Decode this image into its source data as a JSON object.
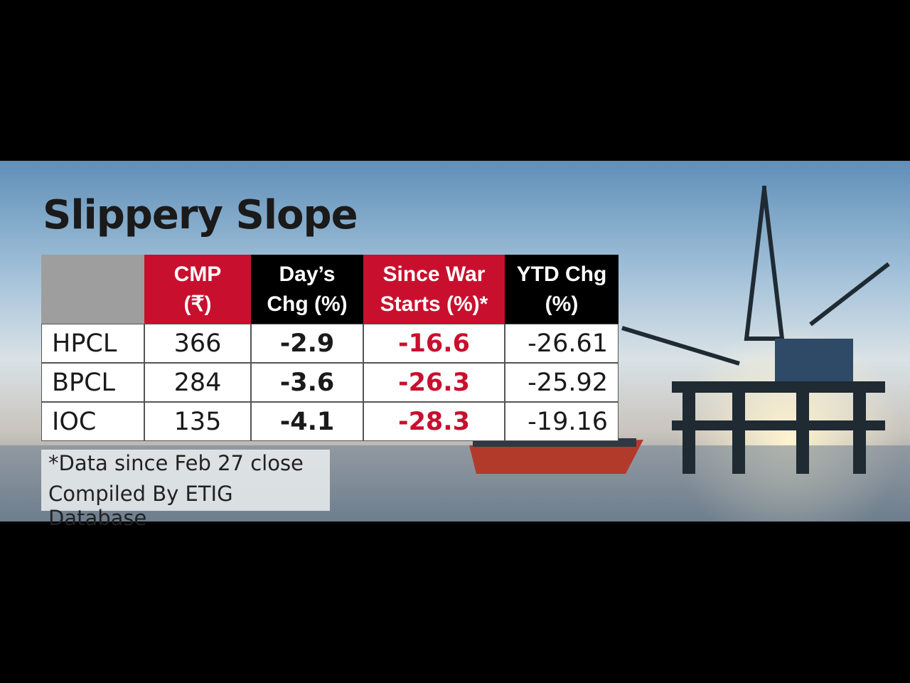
{
  "title": "Slippery Slope",
  "table": {
    "headers": [
      [
        "CMP",
        "(₹)"
      ],
      [
        "Day’s",
        "Chg (%)"
      ],
      [
        "Since War",
        "Starts (%)*"
      ],
      [
        "YTD Chg",
        "(%)"
      ]
    ],
    "rows": [
      [
        "HPCL",
        "366",
        "-2.9",
        "-16.6",
        "-26.61"
      ],
      [
        "BPCL",
        "284",
        "-3.6",
        "-26.3",
        "-25.92"
      ],
      [
        "IOC",
        "135",
        "-4.1",
        "-28.3",
        "-19.16"
      ]
    ]
  },
  "notes": [
    "*Data since Feb 27 close",
    "Compiled By ETIG Database"
  ]
}
